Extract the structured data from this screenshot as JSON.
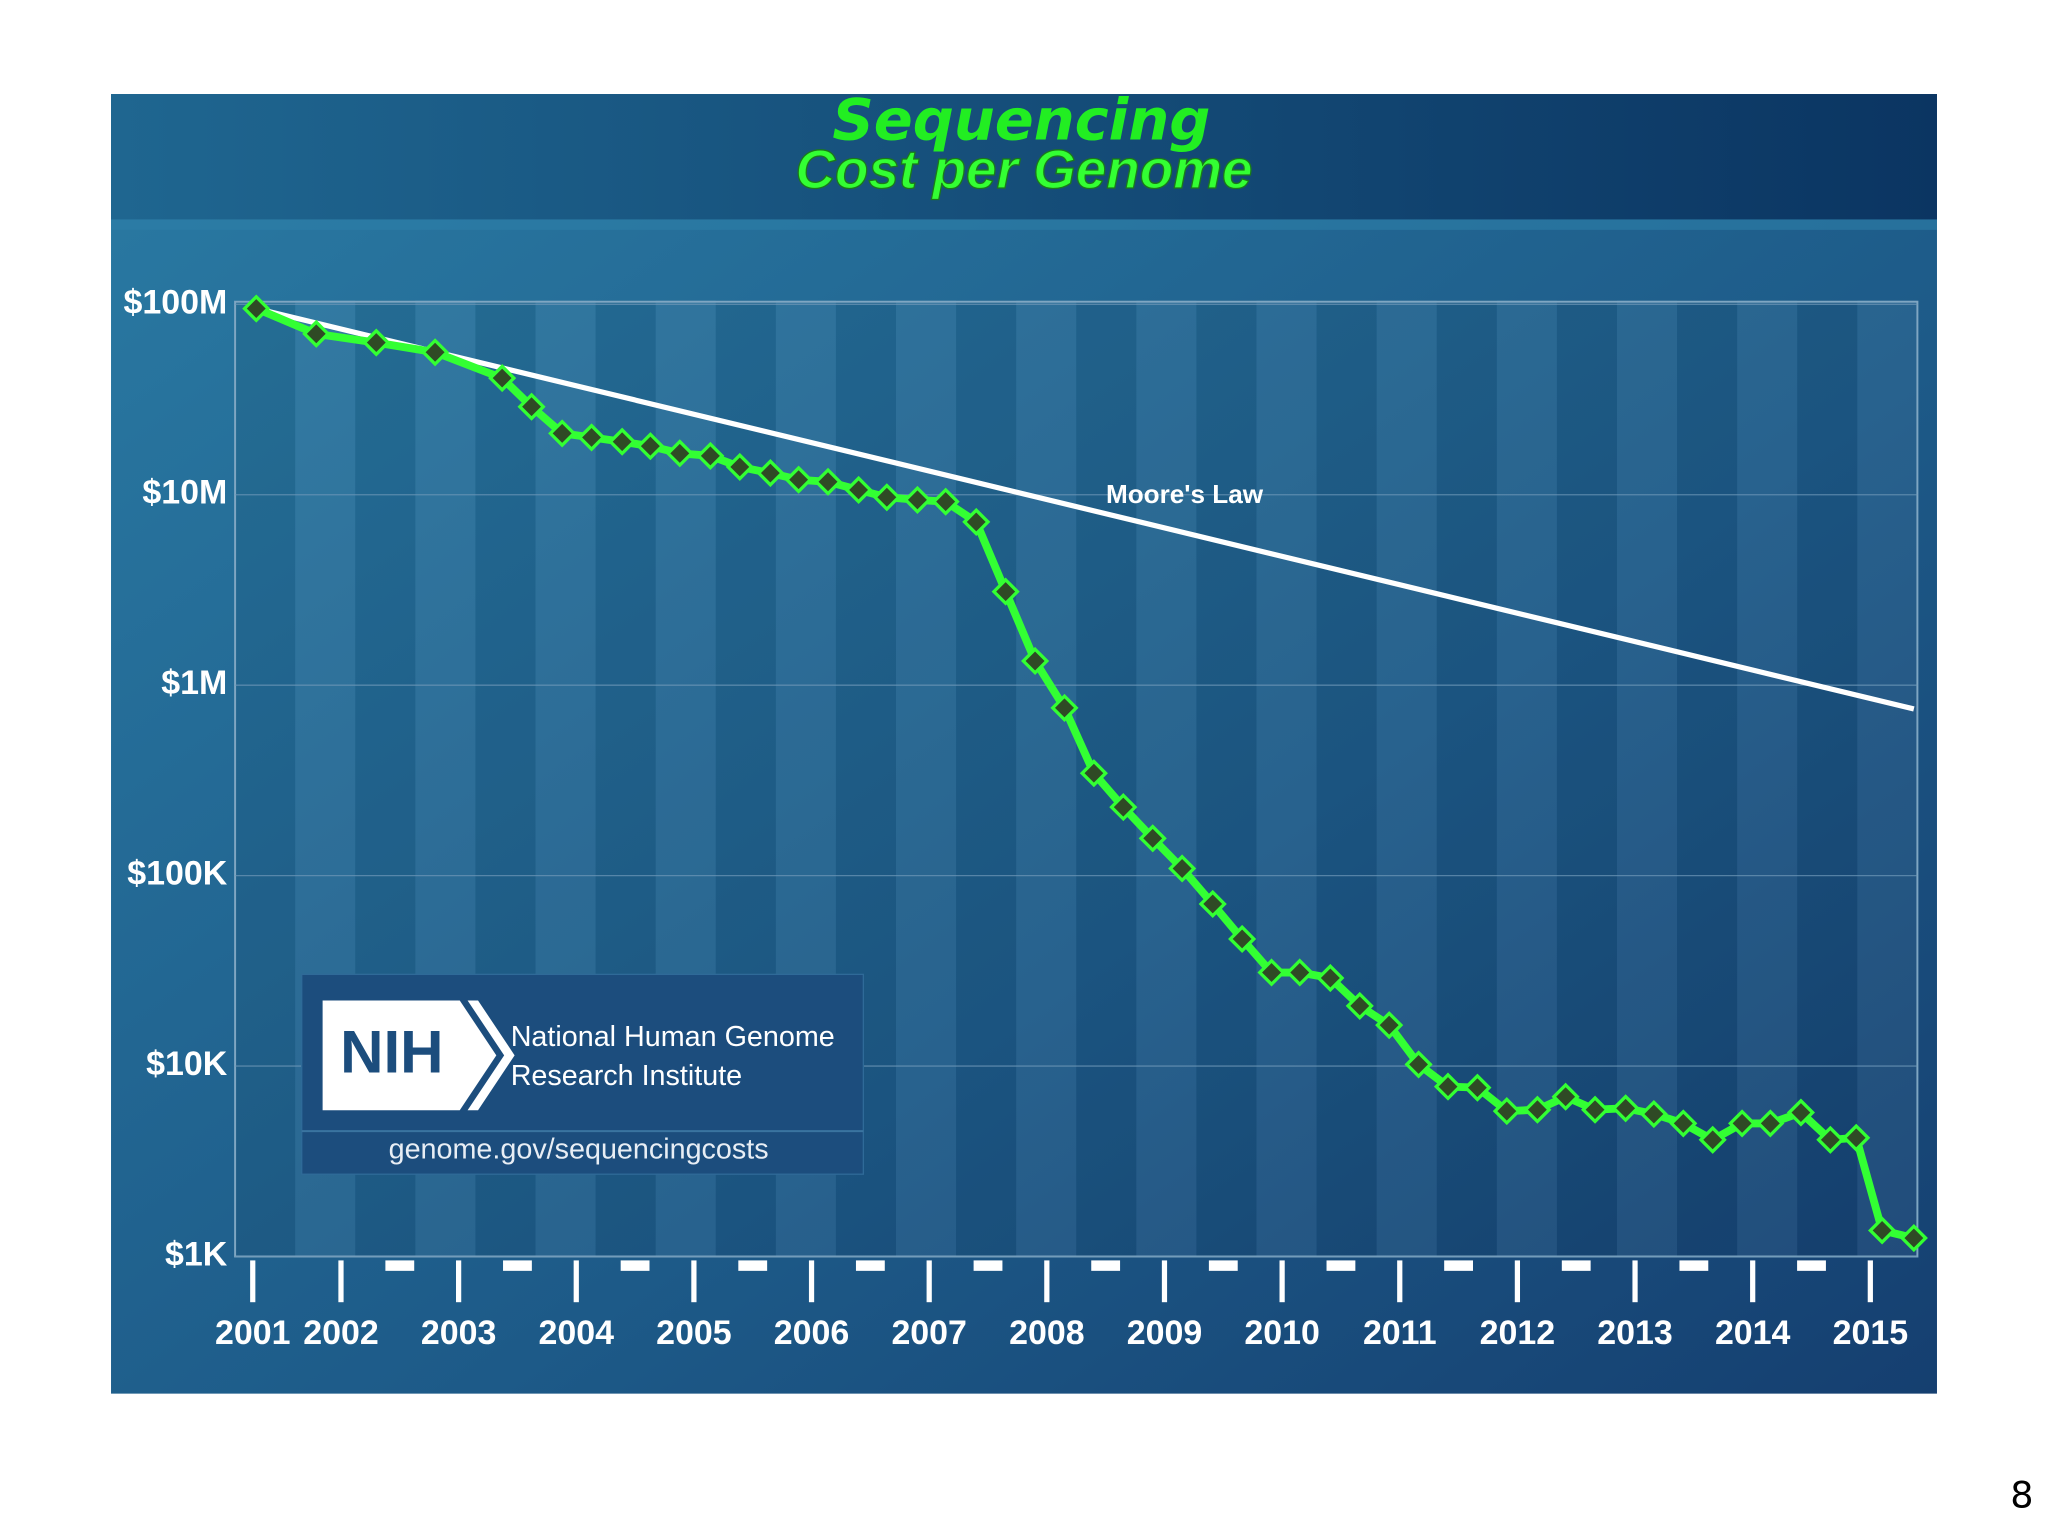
{
  "chart_data": {
    "type": "line",
    "title_lines": [
      "Sequencing",
      "Cost per Genome"
    ],
    "log_y": true,
    "xlim": [
      2001.1,
      2015.4
    ],
    "xticks": [
      {
        "value": 2001.25,
        "label": "2001"
      },
      2002,
      2003,
      2004,
      2005,
      2006,
      2007,
      2008,
      2009,
      2010,
      2011,
      2012,
      2013,
      2014,
      2015
    ],
    "ylim": [
      1000,
      100000000
    ],
    "yticks": [
      {
        "value": 100000000,
        "label": "$100M"
      },
      {
        "value": 10000000,
        "label": "$10M"
      },
      {
        "value": 1000000,
        "label": "$1M"
      },
      {
        "value": 100000,
        "label": "$100K"
      },
      {
        "value": 10000,
        "label": "$10K"
      },
      {
        "value": 1000,
        "label": "$1K"
      }
    ],
    "grid": true,
    "series": [
      {
        "name": "Cost per Genome",
        "color": "#33ff33",
        "x": [
          2001.28,
          2001.79,
          2002.3,
          2002.8,
          2003.37,
          2003.62,
          2003.88,
          2004.13,
          2004.39,
          2004.63,
          2004.88,
          2005.14,
          2005.39,
          2005.65,
          2005.89,
          2006.14,
          2006.4,
          2006.64,
          2006.9,
          2007.14,
          2007.4,
          2007.65,
          2007.9,
          2008.15,
          2008.4,
          2008.65,
          2008.9,
          2009.15,
          2009.41,
          2009.66,
          2009.91,
          2010.15,
          2010.41,
          2010.66,
          2010.91,
          2011.16,
          2011.41,
          2011.66,
          2011.91,
          2012.17,
          2012.41,
          2012.66,
          2012.92,
          2013.16,
          2013.41,
          2013.66,
          2013.91,
          2014.15,
          2014.41,
          2014.66,
          2014.88,
          2015.1,
          2015.37
        ],
        "values": [
          95000000,
          70000000,
          63000000,
          56000000,
          41000000,
          29000000,
          21000000,
          20000000,
          19000000,
          18000000,
          16500000,
          16000000,
          14000000,
          13000000,
          12000000,
          11700000,
          10600000,
          9700000,
          9400000,
          9200000,
          7200000,
          3100000,
          1340000,
          760000,
          345000,
          229000,
          157000,
          109000,
          71000,
          46500,
          31000,
          31000,
          29000,
          20700,
          16400,
          10200,
          7800,
          7700,
          5800,
          5900,
          6900,
          5900,
          6000,
          5600,
          5000,
          4100,
          5000,
          5000,
          5700,
          4100,
          4200,
          1370,
          1250
        ]
      },
      {
        "name": "Moore's Law",
        "color": "#ffffff",
        "x": [
          2001.28,
          2015.37
        ],
        "values": [
          95000000,
          750000
        ]
      }
    ],
    "logo": {
      "mark": "NIH",
      "lines": [
        "National Human Genome",
        "Research Institute"
      ],
      "url": "genome.gov/sequencingcosts"
    }
  },
  "page_number": "8"
}
